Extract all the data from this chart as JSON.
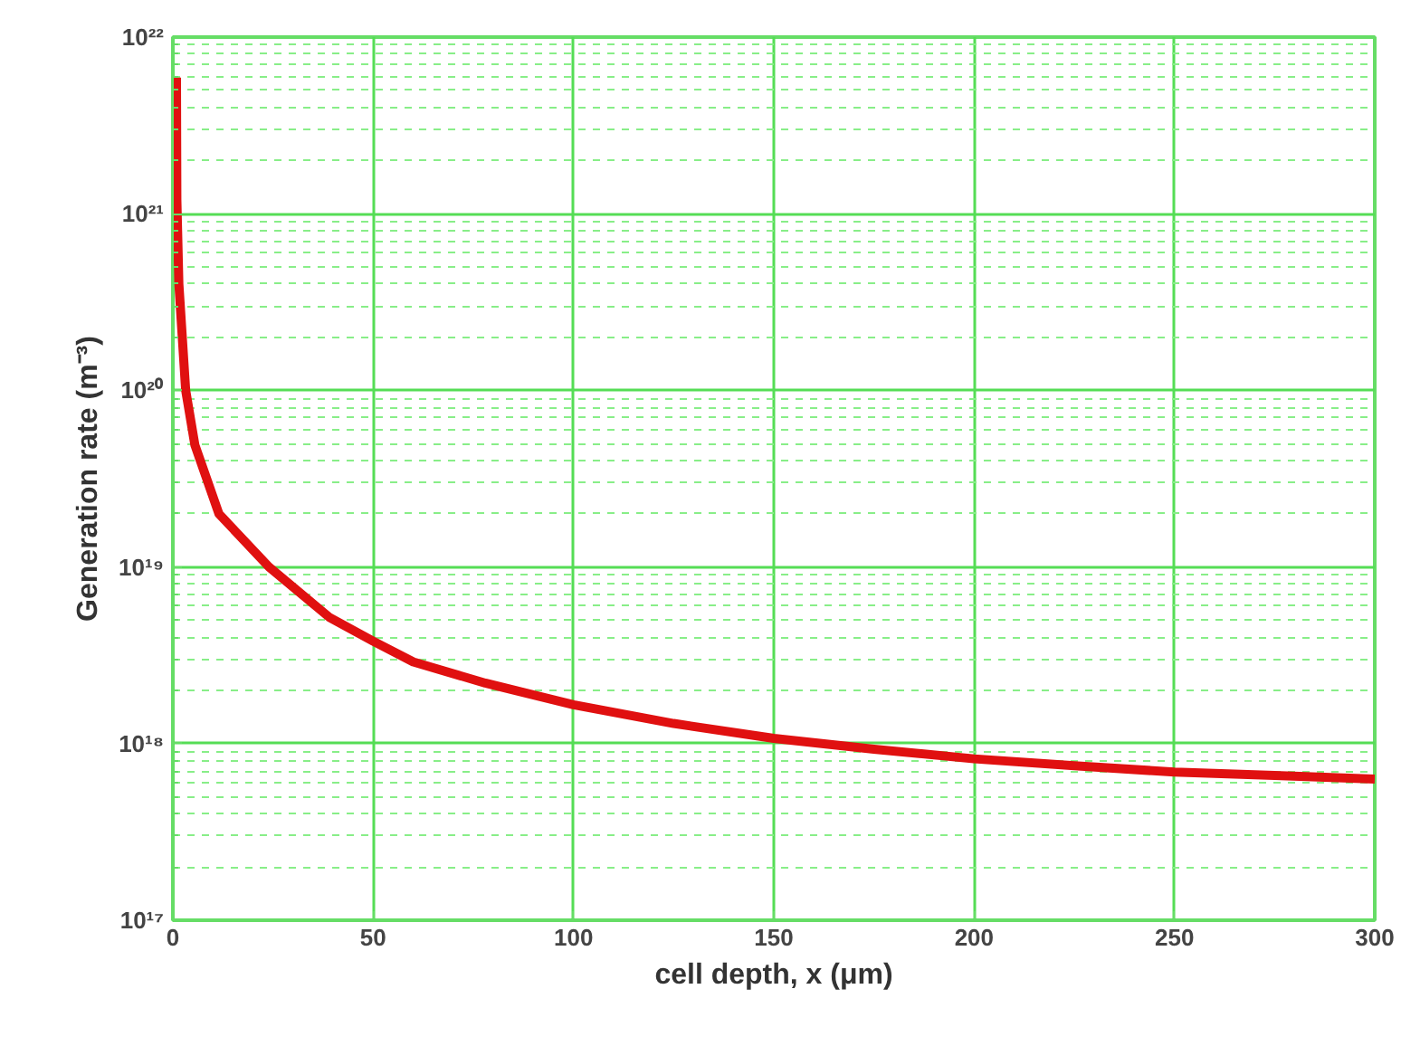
{
  "chart_data": {
    "type": "line",
    "xlabel": "cell depth, x (μm)",
    "ylabel": "Generation rate (m⁻³)",
    "x": [
      0.9,
      1.0,
      1.5,
      3.2,
      5.5,
      11.5,
      24,
      39,
      50,
      60,
      78,
      100,
      125,
      150,
      175,
      200,
      225,
      250,
      275,
      300
    ],
    "series": [
      {
        "color": "#e01010",
        "values": [
          5.9e+21,
          1.2e+21,
          4e+20,
          1e+20,
          4.9e+19,
          2e+19,
          1e+19,
          5.2e+18,
          3.8e+18,
          2.9e+18,
          2.2e+18,
          1.66e+18,
          1.3e+18,
          1.07e+18,
          9.3e+17,
          8.2e+17,
          7.5e+17,
          6.9e+17,
          6.6e+17,
          6.3e+17
        ]
      }
    ],
    "log": "y",
    "xlim": [
      0,
      300
    ],
    "ylim": [
      1e+17,
      1e+22
    ],
    "xticks": [
      0,
      50,
      100,
      150,
      200,
      250,
      300
    ],
    "yticks": [
      {
        "value": 1e+17,
        "label": "10¹⁷"
      },
      {
        "value": 2e+17,
        "label": null
      },
      {
        "value": 3e+17,
        "label": null
      },
      {
        "value": 4e+17,
        "label": null
      },
      {
        "value": 5e+17,
        "label": null
      },
      {
        "value": 6e+17,
        "label": null
      },
      {
        "value": 7e+17,
        "label": null
      },
      {
        "value": 8e+17,
        "label": null
      },
      {
        "value": 9e+17,
        "label": null
      },
      {
        "value": 1e+18,
        "label": "10¹⁸"
      },
      {
        "value": 2e+18,
        "label": null
      },
      {
        "value": 3e+18,
        "label": null
      },
      {
        "value": 4e+18,
        "label": null
      },
      {
        "value": 5e+18,
        "label": null
      },
      {
        "value": 6e+18,
        "label": null
      },
      {
        "value": 7e+18,
        "label": null
      },
      {
        "value": 8e+18,
        "label": null
      },
      {
        "value": 9e+18,
        "label": null
      },
      {
        "value": 1e+19,
        "label": "10¹⁹"
      },
      {
        "value": 2e+19,
        "label": null
      },
      {
        "value": 3e+19,
        "label": null
      },
      {
        "value": 4e+19,
        "label": null
      },
      {
        "value": 5e+19,
        "label": null
      },
      {
        "value": 6e+19,
        "label": null
      },
      {
        "value": 7e+19,
        "label": null
      },
      {
        "value": 8e+19,
        "label": null
      },
      {
        "value": 9e+19,
        "label": null
      },
      {
        "value": 1e+20,
        "label": "10²⁰"
      },
      {
        "value": 2e+20,
        "label": null
      },
      {
        "value": 3e+20,
        "label": null
      },
      {
        "value": 4e+20,
        "label": null
      },
      {
        "value": 5e+20,
        "label": null
      },
      {
        "value": 6e+20,
        "label": null
      },
      {
        "value": 7e+20,
        "label": null
      },
      {
        "value": 8e+20,
        "label": null
      },
      {
        "value": 9e+20,
        "label": null
      },
      {
        "value": 1e+21,
        "label": "10²¹"
      },
      {
        "value": 2e+21,
        "label": null
      },
      {
        "value": 3e+21,
        "label": null
      },
      {
        "value": 4e+21,
        "label": null
      },
      {
        "value": 5e+21,
        "label": null
      },
      {
        "value": 6e+21,
        "label": null
      },
      {
        "value": 7e+21,
        "label": null
      },
      {
        "value": 8e+21,
        "label": null
      },
      {
        "value": 9e+21,
        "label": null
      },
      {
        "value": 1e+22,
        "label": "10²²"
      }
    ],
    "grid": true,
    "line_style": "solid",
    "marker": "none"
  }
}
